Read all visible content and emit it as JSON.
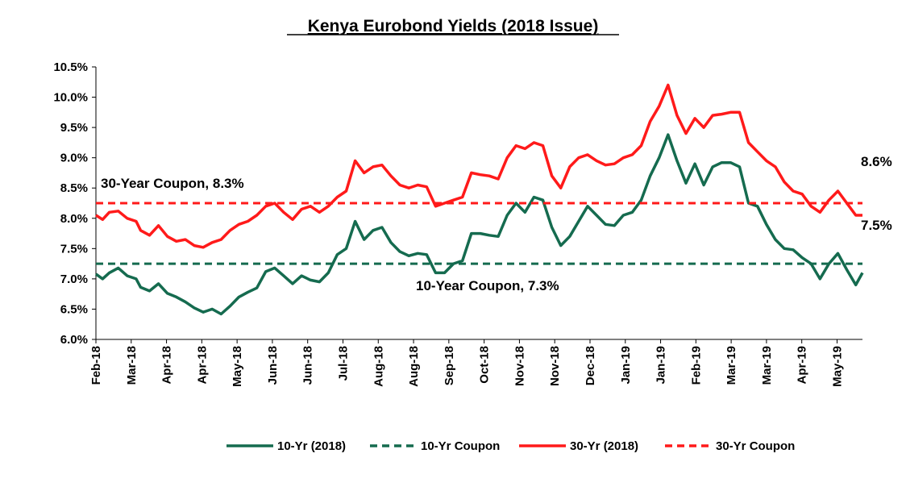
{
  "chart_data": {
    "type": "line",
    "title": "Kenya Eurobond Yields (2018 Issue)",
    "xlabel": "",
    "ylabel": "",
    "ylim": [
      6.0,
      10.5
    ],
    "y_ticks": [
      "6.0%",
      "6.5%",
      "7.0%",
      "7.5%",
      "8.0%",
      "8.5%",
      "9.0%",
      "9.5%",
      "10.0%",
      "10.5%"
    ],
    "x_tick_labels": [
      "Feb-18",
      "Mar-18",
      "Apr-18",
      "Apr-18",
      "May-18",
      "Jun-18",
      "Jun-18",
      "Jul-18",
      "Aug-18",
      "Aug-18",
      "Sep-18",
      "Oct-18",
      "Nov-18",
      "Nov-18",
      "Dec-18",
      "Jan-19",
      "Jan-19",
      "Feb-19",
      "Mar-19",
      "Mar-19",
      "Apr-19",
      "May-19"
    ],
    "x_range": [
      0,
      343
    ],
    "grid": false,
    "legend_position": "bottom",
    "series": [
      {
        "name": "10-Yr (2018)",
        "color": "#156b4f",
        "style": "solid",
        "x": [
          0,
          3,
          6,
          10,
          14,
          18,
          20,
          24,
          28,
          32,
          36,
          40,
          44,
          48,
          52,
          56,
          60,
          64,
          68,
          72,
          76,
          80,
          84,
          88,
          92,
          96,
          100,
          104,
          108,
          112,
          116,
          120,
          124,
          128,
          132,
          136,
          140,
          144,
          148,
          152,
          156,
          160,
          164,
          168,
          172,
          176,
          180,
          184,
          188,
          192,
          196,
          200,
          204,
          208,
          212,
          216,
          220,
          224,
          228,
          232,
          236,
          240,
          244,
          248,
          252,
          256,
          260,
          264,
          268,
          272,
          276,
          280,
          284,
          288,
          292,
          296,
          300,
          304,
          308,
          312,
          316,
          320,
          324,
          328,
          332,
          336,
          340,
          343
        ],
        "values": [
          7.08,
          7.0,
          7.1,
          7.18,
          7.05,
          7.0,
          6.86,
          6.8,
          6.92,
          6.76,
          6.7,
          6.62,
          6.52,
          6.45,
          6.5,
          6.42,
          6.55,
          6.7,
          6.78,
          6.85,
          7.12,
          7.18,
          7.05,
          6.92,
          7.05,
          6.98,
          6.95,
          7.1,
          7.4,
          7.5,
          7.95,
          7.65,
          7.8,
          7.85,
          7.6,
          7.45,
          7.38,
          7.42,
          7.4,
          7.1,
          7.1,
          7.25,
          7.3,
          7.75,
          7.75,
          7.72,
          7.7,
          8.05,
          8.25,
          8.1,
          8.35,
          8.3,
          7.85,
          7.55,
          7.7,
          7.95,
          8.2,
          8.05,
          7.9,
          7.88,
          8.05,
          8.1,
          8.3,
          8.7,
          9.0,
          9.38,
          8.95,
          8.58,
          8.9,
          8.55,
          8.85,
          8.92,
          8.92,
          8.85,
          8.25,
          8.2,
          7.9,
          7.65,
          7.5,
          7.48,
          7.35,
          7.25,
          7.0,
          7.25,
          7.42,
          7.15,
          6.9,
          7.1
        ]
      },
      {
        "name": "10-Yr Coupon",
        "color": "#156b4f",
        "style": "dashed",
        "x": [
          0,
          343
        ],
        "values": [
          7.25,
          7.25
        ]
      },
      {
        "name": "30-Yr (2018)",
        "color": "#ff1a1a",
        "style": "solid",
        "x": [
          0,
          3,
          6,
          10,
          14,
          18,
          20,
          24,
          28,
          32,
          36,
          40,
          44,
          48,
          52,
          56,
          60,
          64,
          68,
          72,
          76,
          80,
          84,
          88,
          92,
          96,
          100,
          104,
          108,
          112,
          116,
          120,
          124,
          128,
          132,
          136,
          140,
          144,
          148,
          152,
          156,
          160,
          164,
          168,
          172,
          176,
          180,
          184,
          188,
          192,
          196,
          200,
          204,
          208,
          212,
          216,
          220,
          224,
          228,
          232,
          236,
          240,
          244,
          248,
          252,
          256,
          260,
          264,
          268,
          272,
          276,
          280,
          284,
          288,
          292,
          296,
          300,
          304,
          308,
          312,
          316,
          320,
          324,
          328,
          332,
          336,
          340,
          343
        ],
        "values": [
          8.05,
          7.98,
          8.1,
          8.12,
          8.0,
          7.95,
          7.8,
          7.72,
          7.88,
          7.7,
          7.62,
          7.65,
          7.55,
          7.52,
          7.6,
          7.65,
          7.8,
          7.9,
          7.95,
          8.05,
          8.2,
          8.25,
          8.1,
          7.98,
          8.15,
          8.2,
          8.1,
          8.2,
          8.35,
          8.45,
          8.95,
          8.75,
          8.85,
          8.88,
          8.7,
          8.55,
          8.5,
          8.55,
          8.52,
          8.2,
          8.25,
          8.3,
          8.35,
          8.75,
          8.72,
          8.7,
          8.65,
          9.0,
          9.2,
          9.15,
          9.25,
          9.2,
          8.7,
          8.5,
          8.85,
          9.0,
          9.05,
          8.95,
          8.88,
          8.9,
          9.0,
          9.05,
          9.2,
          9.6,
          9.85,
          10.2,
          9.7,
          9.4,
          9.65,
          9.5,
          9.7,
          9.72,
          9.75,
          9.75,
          9.25,
          9.1,
          8.95,
          8.85,
          8.6,
          8.45,
          8.4,
          8.2,
          8.1,
          8.3,
          8.45,
          8.25,
          8.05,
          8.05
        ]
      },
      {
        "name": "30-Yr Coupon",
        "color": "#ff1a1a",
        "style": "dashed",
        "x": [
          0,
          343
        ],
        "values": [
          8.25,
          8.25
        ]
      }
    ],
    "annotations": [
      {
        "text": "30-Year Coupon, 8.3%"
      },
      {
        "text": "10-Year Coupon, 7.3%"
      },
      {
        "text": "8.6%"
      },
      {
        "text": "7.5%"
      }
    ]
  }
}
